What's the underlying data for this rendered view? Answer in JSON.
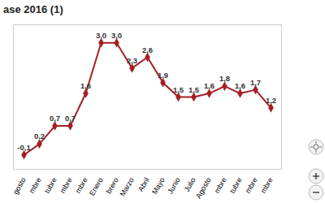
{
  "chart_data": {
    "type": "line",
    "title": "ase 2016 (1)",
    "categories": [
      "gosto",
      "mbre",
      "tubre",
      "mbre",
      "mbre",
      "Enero",
      "brero",
      "Marzo",
      "Abril",
      "Mayo",
      "Junio",
      "Julio",
      "Agosto",
      "mbre",
      "tubre",
      "mbre",
      "mbre"
    ],
    "values": [
      -0.1,
      0.2,
      0.7,
      0.7,
      1.6,
      3.0,
      3.0,
      2.3,
      2.6,
      1.9,
      1.5,
      1.5,
      1.6,
      1.8,
      1.6,
      1.7,
      1.2
    ],
    "value_labels": [
      "-0,1",
      "0,2",
      "0,7",
      "0,7",
      "1,6",
      "3,0",
      "3,0",
      "2,3",
      "2,6",
      "1,9",
      "1,5",
      "1,5",
      "1,6",
      "1,8",
      "1,6",
      "1,7",
      "1,2"
    ],
    "color": "#a31f24",
    "marker": "diamond",
    "ylim": [
      -0.5,
      3.5
    ],
    "data_labels": true,
    "tick_labels": "x",
    "grid": false
  }
}
